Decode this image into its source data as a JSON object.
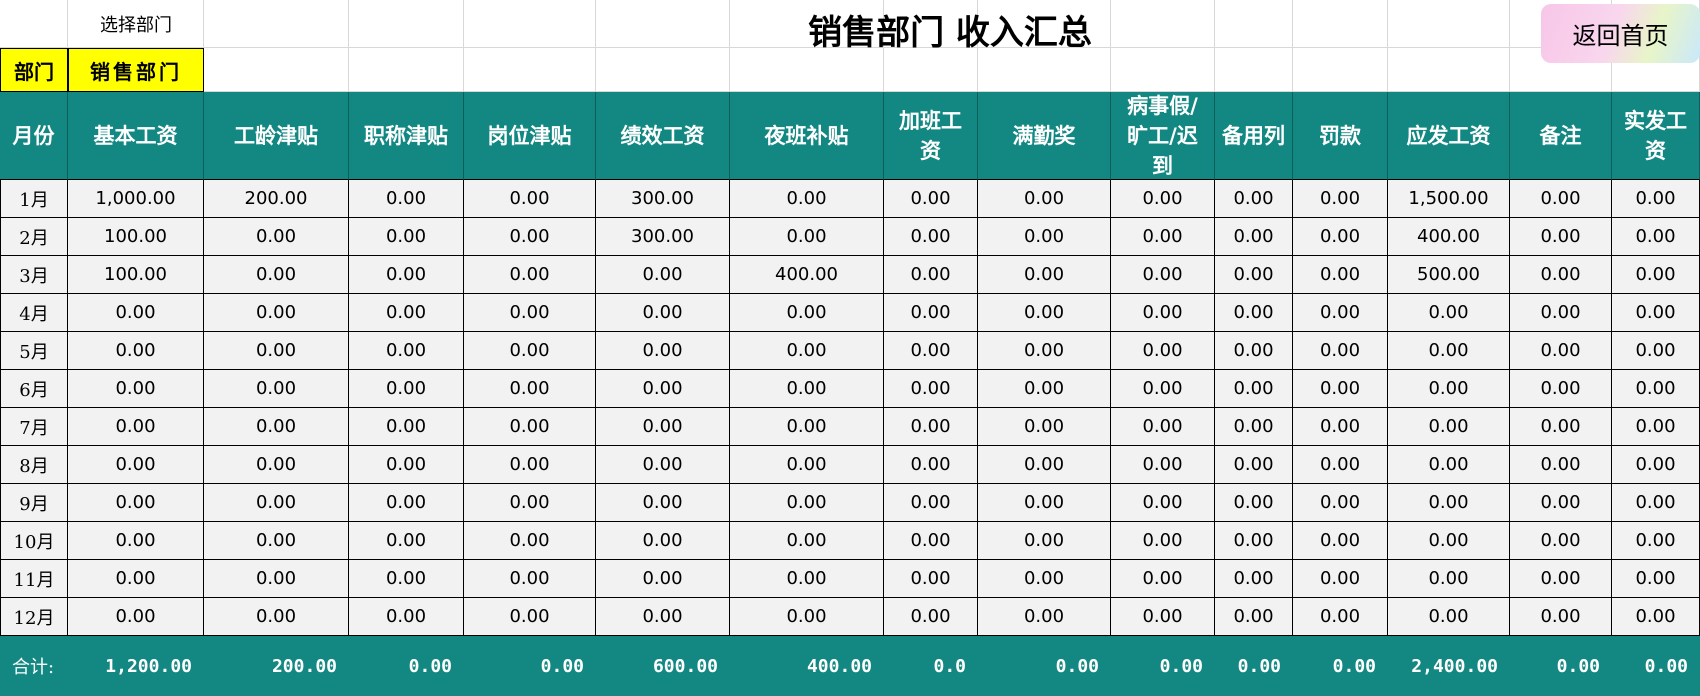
{
  "header": {
    "select_label": "选择部门",
    "dept_label": "部门",
    "dept_value": "销售部门",
    "title": "销售部门 收入汇总",
    "home_button": "返回首页"
  },
  "table": {
    "columns": [
      "月份",
      "基本工资",
      "工龄津贴",
      "职称津贴",
      "岗位津贴",
      "绩效工资",
      "夜班补贴",
      "加班工资",
      "满勤奖",
      "病事假/旷工/迟到",
      "备用列",
      "罚款",
      "应发工资",
      "备注",
      "实发工资"
    ],
    "rows": [
      [
        "1月",
        "1,000.00",
        "200.00",
        "0.00",
        "0.00",
        "300.00",
        "0.00",
        "0.00",
        "0.00",
        "0.00",
        "0.00",
        "0.00",
        "1,500.00",
        "0.00",
        "0.00"
      ],
      [
        "2月",
        "100.00",
        "0.00",
        "0.00",
        "0.00",
        "300.00",
        "0.00",
        "0.00",
        "0.00",
        "0.00",
        "0.00",
        "0.00",
        "400.00",
        "0.00",
        "0.00"
      ],
      [
        "3月",
        "100.00",
        "0.00",
        "0.00",
        "0.00",
        "0.00",
        "400.00",
        "0.00",
        "0.00",
        "0.00",
        "0.00",
        "0.00",
        "500.00",
        "0.00",
        "0.00"
      ],
      [
        "4月",
        "0.00",
        "0.00",
        "0.00",
        "0.00",
        "0.00",
        "0.00",
        "0.00",
        "0.00",
        "0.00",
        "0.00",
        "0.00",
        "0.00",
        "0.00",
        "0.00"
      ],
      [
        "5月",
        "0.00",
        "0.00",
        "0.00",
        "0.00",
        "0.00",
        "0.00",
        "0.00",
        "0.00",
        "0.00",
        "0.00",
        "0.00",
        "0.00",
        "0.00",
        "0.00"
      ],
      [
        "6月",
        "0.00",
        "0.00",
        "0.00",
        "0.00",
        "0.00",
        "0.00",
        "0.00",
        "0.00",
        "0.00",
        "0.00",
        "0.00",
        "0.00",
        "0.00",
        "0.00"
      ],
      [
        "7月",
        "0.00",
        "0.00",
        "0.00",
        "0.00",
        "0.00",
        "0.00",
        "0.00",
        "0.00",
        "0.00",
        "0.00",
        "0.00",
        "0.00",
        "0.00",
        "0.00"
      ],
      [
        "8月",
        "0.00",
        "0.00",
        "0.00",
        "0.00",
        "0.00",
        "0.00",
        "0.00",
        "0.00",
        "0.00",
        "0.00",
        "0.00",
        "0.00",
        "0.00",
        "0.00"
      ],
      [
        "9月",
        "0.00",
        "0.00",
        "0.00",
        "0.00",
        "0.00",
        "0.00",
        "0.00",
        "0.00",
        "0.00",
        "0.00",
        "0.00",
        "0.00",
        "0.00",
        "0.00"
      ],
      [
        "10月",
        "0.00",
        "0.00",
        "0.00",
        "0.00",
        "0.00",
        "0.00",
        "0.00",
        "0.00",
        "0.00",
        "0.00",
        "0.00",
        "0.00",
        "0.00",
        "0.00"
      ],
      [
        "11月",
        "0.00",
        "0.00",
        "0.00",
        "0.00",
        "0.00",
        "0.00",
        "0.00",
        "0.00",
        "0.00",
        "0.00",
        "0.00",
        "0.00",
        "0.00",
        "0.00"
      ],
      [
        "12月",
        "0.00",
        "0.00",
        "0.00",
        "0.00",
        "0.00",
        "0.00",
        "0.00",
        "0.00",
        "0.00",
        "0.00",
        "0.00",
        "0.00",
        "0.00",
        "0.00"
      ]
    ],
    "total": [
      "合计:",
      "1,200.00",
      "200.00",
      "0.00",
      "0.00",
      "600.00",
      "400.00",
      "0.0",
      "0.00",
      "0.00",
      "0.00",
      "0.00",
      "2,400.00",
      "0.00",
      "0.00"
    ]
  }
}
